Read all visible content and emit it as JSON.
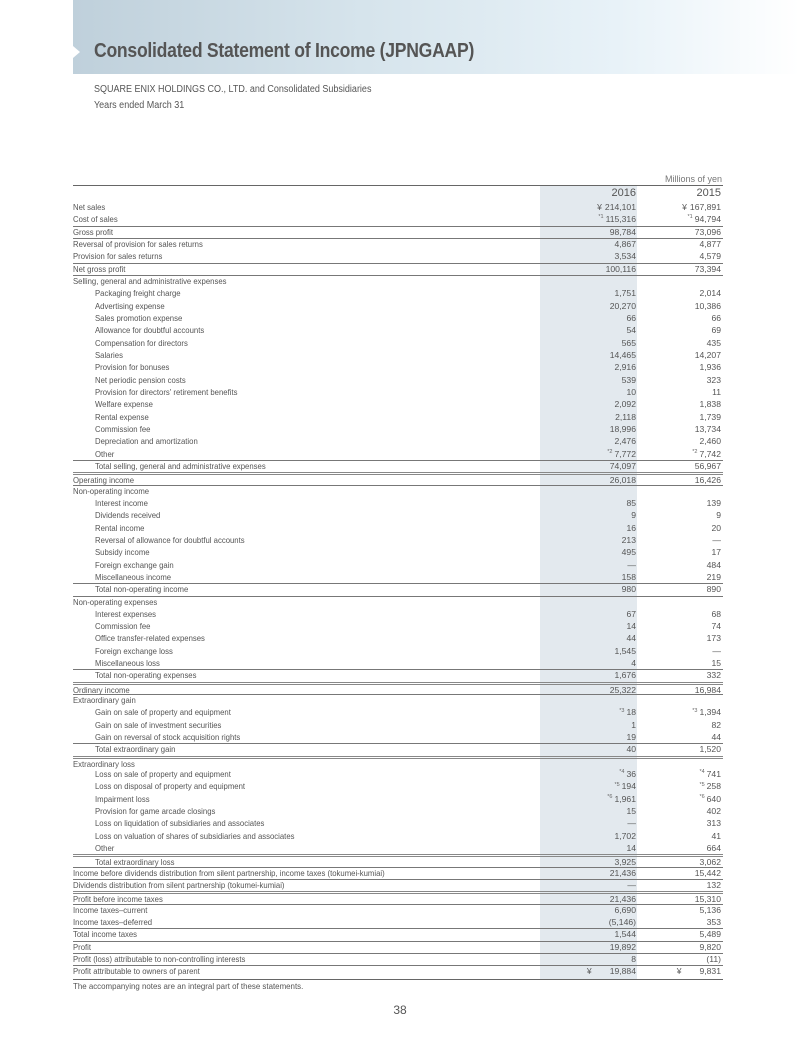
{
  "header": {
    "title": "Consolidated Statement of Income (JPNGAAP)",
    "company": "SQUARE ENIX HOLDINGS CO., LTD. and Consolidated Subsidiaries",
    "period": "Years ended March 31"
  },
  "table": {
    "units": "Millions of yen",
    "years": [
      "2016",
      "2015"
    ],
    "rows": [
      {
        "l": "Net sales",
        "a": "214,101",
        "ay": "¥",
        "b": "167,891",
        "by": "¥"
      },
      {
        "l": "Cost of sales",
        "a": "115,316",
        "an": "*1",
        "b": "94,794",
        "bn": "*1"
      },
      {
        "l": "Gross profit",
        "a": "98,784",
        "b": "73,096",
        "t": 1
      },
      {
        "l": "Reversal of provision for sales returns",
        "a": "4,867",
        "b": "4,877",
        "t": 1
      },
      {
        "l": "Provision for sales returns",
        "a": "3,534",
        "b": "4,579"
      },
      {
        "l": "Net gross profit",
        "a": "100,116",
        "b": "73,394",
        "t": 1
      },
      {
        "l": "Selling, general and administrative expenses",
        "t": 1
      },
      {
        "l": "Packaging freight charge",
        "i": 1,
        "a": "1,751",
        "b": "2,014"
      },
      {
        "l": "Advertising expense",
        "i": 1,
        "a": "20,270",
        "b": "10,386"
      },
      {
        "l": "Sales promotion expense",
        "i": 1,
        "a": "66",
        "b": "66"
      },
      {
        "l": "Allowance for doubtful accounts",
        "i": 1,
        "a": "54",
        "b": "69"
      },
      {
        "l": "Compensation for directors",
        "i": 1,
        "a": "565",
        "b": "435"
      },
      {
        "l": "Salaries",
        "i": 1,
        "a": "14,465",
        "b": "14,207"
      },
      {
        "l": "Provision for bonuses",
        "i": 1,
        "a": "2,916",
        "b": "1,936"
      },
      {
        "l": "Net periodic pension costs",
        "i": 1,
        "a": "539",
        "b": "323"
      },
      {
        "l": "Provision for directors' retirement benefits",
        "i": 1,
        "a": "10",
        "b": "11"
      },
      {
        "l": "Welfare expense",
        "i": 1,
        "a": "2,092",
        "b": "1,838"
      },
      {
        "l": "Rental expense",
        "i": 1,
        "a": "2,118",
        "b": "1,739"
      },
      {
        "l": "Commission fee",
        "i": 1,
        "a": "18,996",
        "b": "13,734"
      },
      {
        "l": "Depreciation and amortization",
        "i": 1,
        "a": "2,476",
        "b": "2,460"
      },
      {
        "l": "Other",
        "i": 1,
        "a": "7,772",
        "an": "*2",
        "b": "7,742",
        "bn": "*2"
      },
      {
        "l": "Total selling, general and administrative expenses",
        "i": 1,
        "a": "74,097",
        "b": "56,967",
        "t": 1
      },
      {
        "l": "Operating income",
        "a": "26,018",
        "b": "16,426",
        "t": 2
      },
      {
        "l": "Non-operating income",
        "t": 1
      },
      {
        "l": "Interest income",
        "i": 1,
        "a": "85",
        "b": "139"
      },
      {
        "l": "Dividends received",
        "i": 1,
        "a": "9",
        "b": "9"
      },
      {
        "l": "Rental income",
        "i": 1,
        "a": "16",
        "b": "20"
      },
      {
        "l": "Reversal of allowance for doubtful accounts",
        "i": 1,
        "a": "213",
        "b": "—"
      },
      {
        "l": "Subsidy income",
        "i": 1,
        "a": "495",
        "b": "17"
      },
      {
        "l": "Foreign exchange gain",
        "i": 1,
        "a": "—",
        "b": "484"
      },
      {
        "l": "Miscellaneous income",
        "i": 1,
        "a": "158",
        "b": "219"
      },
      {
        "l": "Total non-operating income",
        "i": 1,
        "a": "980",
        "b": "890",
        "t": 1
      },
      {
        "l": "Non-operating expenses",
        "t": 1
      },
      {
        "l": "Interest expenses",
        "i": 1,
        "a": "67",
        "b": "68"
      },
      {
        "l": "Commission fee",
        "i": 1,
        "a": "14",
        "b": "74"
      },
      {
        "l": "Office transfer-related expenses",
        "i": 1,
        "a": "44",
        "b": "173"
      },
      {
        "l": "Foreign exchange loss",
        "i": 1,
        "a": "1,545",
        "b": "—"
      },
      {
        "l": "Miscellaneous loss",
        "i": 1,
        "a": "4",
        "b": "15"
      },
      {
        "l": "Total non-operating expenses",
        "i": 1,
        "a": "1,676",
        "b": "332",
        "t": 1
      },
      {
        "l": "Ordinary income",
        "a": "25,322",
        "b": "16,984",
        "t": 2
      },
      {
        "l": "Extraordinary gain",
        "t": 1
      },
      {
        "l": "Gain on sale of property and equipment",
        "i": 1,
        "a": "18",
        "an": "*3",
        "b": "1,394",
        "bn": "*3"
      },
      {
        "l": "Gain on sale of investment securities",
        "i": 1,
        "a": "1",
        "b": "82"
      },
      {
        "l": "Gain on reversal of stock acquisition rights",
        "i": 1,
        "a": "19",
        "b": "44"
      },
      {
        "l": "Total extraordinary gain",
        "i": 1,
        "a": "40",
        "b": "1,520",
        "t": 1
      },
      {
        "l": "Extraordinary loss",
        "t": 2
      },
      {
        "l": "Loss on sale of property and equipment",
        "i": 1,
        "a": "36",
        "an": "*4",
        "b": "741",
        "bn": "*4"
      },
      {
        "l": "Loss on disposal of property and equipment",
        "i": 1,
        "a": "194",
        "an": "*5",
        "b": "258",
        "bn": "*5"
      },
      {
        "l": "Impairment loss",
        "i": 1,
        "a": "1,961",
        "an": "*6",
        "b": "640",
        "bn": "*6"
      },
      {
        "l": "Provision for game arcade closings",
        "i": 1,
        "a": "15",
        "b": "402"
      },
      {
        "l": "Loss on liquidation of subsidiaries and associates",
        "i": 1,
        "a": "—",
        "b": "313"
      },
      {
        "l": "Loss on valuation of shares of subsidiaries and associates",
        "i": 1,
        "a": "1,702",
        "b": "41"
      },
      {
        "l": "Other",
        "i": 1,
        "a": "14",
        "b": "664"
      },
      {
        "l": "Total extraordinary loss",
        "i": 1,
        "a": "3,925",
        "b": "3,062",
        "t": 2
      },
      {
        "l": "Income before dividends distribution from silent partnership, income taxes (tokumei-kumiai)",
        "a": "21,436",
        "b": "15,442",
        "t": 1
      },
      {
        "l": "Dividends distribution from silent partnership (tokumei-kumiai)",
        "a": "—",
        "b": "132",
        "t": 1
      },
      {
        "l": "Profit before income taxes",
        "a": "21,436",
        "b": "15,310",
        "t": 2
      },
      {
        "l": "Income taxes–current",
        "a": "6,690",
        "b": "5,136",
        "t": 1
      },
      {
        "l": "Income taxes–deferred",
        "a": "(5,146)",
        "b": "353"
      },
      {
        "l": "Total income taxes",
        "a": "1,544",
        "b": "5,489",
        "t": 1
      },
      {
        "l": "Profit",
        "a": "19,892",
        "b": "9,820",
        "t": 1
      },
      {
        "l": "Profit (loss) attributable to non-controlling interests",
        "a": "8",
        "b": "(11)",
        "t": 1
      },
      {
        "l": "Profit attributable to owners of parent",
        "a": "19,884",
        "ay": "¥",
        "b": "9,831",
        "by": "¥",
        "t": 1,
        "sep": 1
      }
    ],
    "footnote": "The accompanying notes are an integral part of these statements."
  },
  "page_number": "38"
}
